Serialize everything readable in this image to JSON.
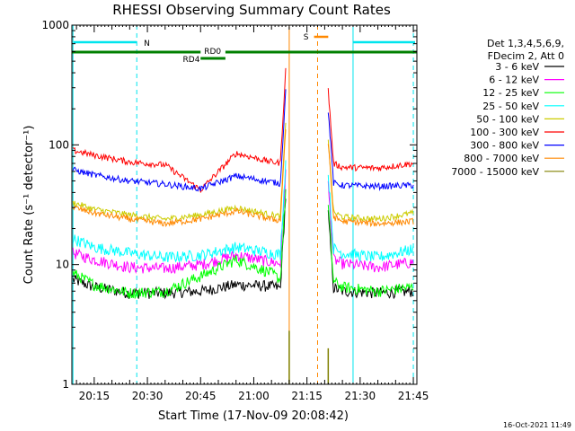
{
  "chart_data": {
    "type": "line",
    "title": "RHESSI Observing Summary Count Rates",
    "xlabel": "Start Time (17-Nov-09 20:08:42)",
    "ylabel": "Count Rate (s⁻¹ detector⁻¹)",
    "y_scale": "log",
    "ylim": [
      1,
      1000
    ],
    "xlim": [
      "20:08:42",
      "21:46:00"
    ],
    "x_ticks": [
      "20:15",
      "20:30",
      "20:45",
      "21:00",
      "21:15",
      "21:30",
      "21:45"
    ],
    "y_ticks": [
      "1",
      "10",
      "100",
      "1000"
    ],
    "grid": false,
    "legend": {
      "placement": "right",
      "header": [
        "Det 1,3,4,5,6,9,",
        "FDecim 2, Att 0"
      ]
    },
    "series": [
      {
        "name": "3 - 6 keV",
        "color": "#000000",
        "x": [
          "20:09",
          "20:15",
          "20:25",
          "20:35",
          "20:45",
          "20:55",
          "21:05",
          "21:09",
          "21:20",
          "21:25",
          "21:35",
          "21:45"
        ],
        "y": [
          7.5,
          6.5,
          5.8,
          5.8,
          6.0,
          6.8,
          6.6,
          6.2,
          6.8,
          6.0,
          5.8,
          6.0
        ]
      },
      {
        "name": "6 - 12 keV",
        "color": "#ff00ff",
        "x": [
          "20:09",
          "20:15",
          "20:25",
          "20:35",
          "20:45",
          "20:55",
          "21:05",
          "21:09",
          "21:20",
          "21:25",
          "21:35",
          "21:45"
        ],
        "y": [
          12.5,
          11.0,
          9.5,
          9.3,
          10.0,
          12.0,
          10.5,
          10.0,
          12.0,
          10.2,
          9.5,
          10.5
        ]
      },
      {
        "name": "12 - 25 keV",
        "color": "#00ff00",
        "x": [
          "20:09",
          "20:15",
          "20:25",
          "20:35",
          "20:45",
          "20:55",
          "21:05",
          "21:09",
          "21:20",
          "21:25",
          "21:35",
          "21:45"
        ],
        "y": [
          8.5,
          6.8,
          5.8,
          6.0,
          8.0,
          11.0,
          8.5,
          7.0,
          8.0,
          6.5,
          6.0,
          6.5
        ]
      },
      {
        "name": "25 - 50 keV",
        "color": "#00ffff",
        "x": [
          "20:09",
          "20:15",
          "20:25",
          "20:35",
          "20:45",
          "20:55",
          "21:05",
          "21:09",
          "21:20",
          "21:25",
          "21:35",
          "21:45"
        ],
        "y": [
          16.5,
          14.0,
          12.5,
          11.5,
          12.0,
          14.0,
          12.5,
          12.0,
          15.0,
          12.5,
          11.5,
          13.5
        ]
      },
      {
        "name": "50 - 100 keV",
        "color": "#cccc00",
        "x": [
          "20:09",
          "20:15",
          "20:25",
          "20:35",
          "20:45",
          "20:55",
          "21:05",
          "21:09",
          "21:20",
          "21:25",
          "21:35",
          "21:45"
        ],
        "y": [
          33,
          29,
          26,
          24,
          26,
          30,
          26,
          25,
          30,
          25,
          24,
          27
        ]
      },
      {
        "name": "100 - 300 keV",
        "color": "#ff0000",
        "x": [
          "20:09",
          "20:15",
          "20:25",
          "20:35",
          "20:45",
          "20:55",
          "21:05",
          "21:09",
          "21:20",
          "21:25",
          "21:35",
          "21:45"
        ],
        "y": [
          90,
          82,
          72,
          68,
          42,
          85,
          72,
          70,
          75,
          65,
          64,
          70
        ]
      },
      {
        "name": "300 - 800 keV",
        "color": "#0000ff",
        "x": [
          "20:09",
          "20:15",
          "20:25",
          "20:35",
          "20:45",
          "20:55",
          "21:05",
          "21:09",
          "21:20",
          "21:25",
          "21:35",
          "21:45"
        ],
        "y": [
          62,
          56,
          50,
          47,
          43,
          55,
          49,
          47,
          50,
          46,
          45,
          46
        ]
      },
      {
        "name": "800 - 7000 keV",
        "color": "#ff8800",
        "x": [
          "20:09",
          "20:15",
          "20:25",
          "20:35",
          "20:45",
          "20:55",
          "21:05",
          "21:09",
          "21:20",
          "21:25",
          "21:35",
          "21:45"
        ],
        "y": [
          30,
          27,
          24,
          22,
          24,
          28,
          24,
          23,
          27,
          23,
          22,
          23
        ]
      },
      {
        "name": "7000 - 15000 keV",
        "color": "#808000",
        "x": [
          "21:10",
          "21:21"
        ],
        "y": [
          2.8,
          2.0
        ]
      }
    ],
    "annotations": [
      {
        "label": "N",
        "color": "#00e5ee"
      },
      {
        "label": "S",
        "color": "#ff8800"
      },
      {
        "label": "RD0",
        "color": "#008000"
      },
      {
        "label": "RD4",
        "color": "#008000"
      }
    ],
    "timestamp": "16-Oct-2021 11:49"
  }
}
